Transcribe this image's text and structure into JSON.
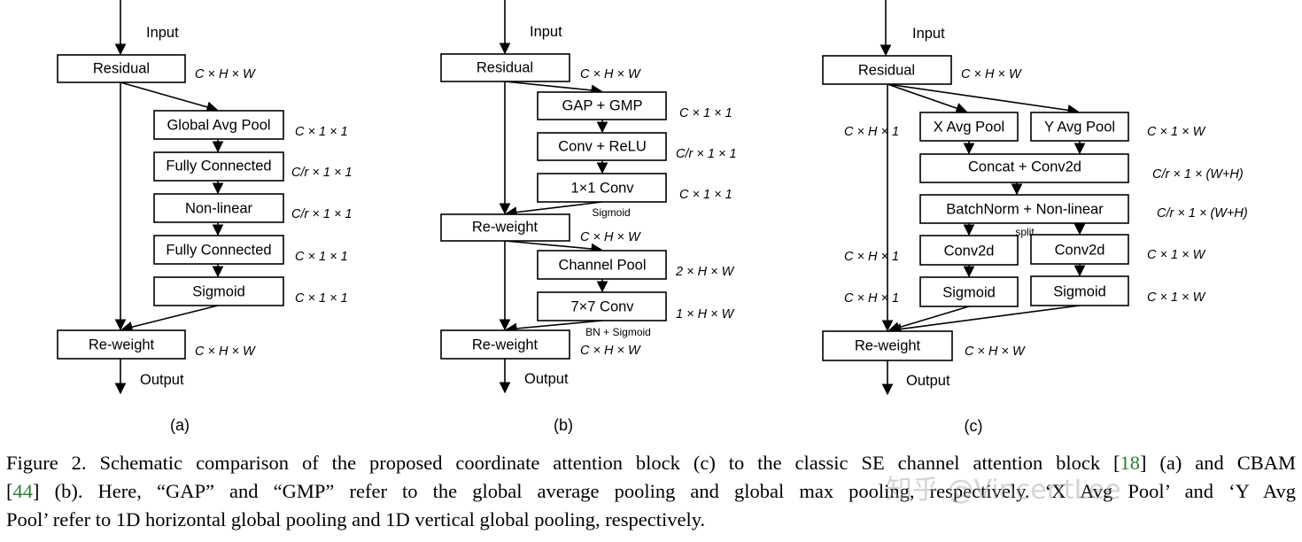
{
  "panels": {
    "a": {
      "label": "(a)",
      "input": "Input",
      "output": "Output",
      "boxes": [
        "Residual",
        "Global Avg Pool",
        "Fully Connected",
        "Non-linear",
        "Fully Connected",
        "Sigmoid",
        "Re-weight"
      ],
      "dims": [
        "C × H × W",
        "C × 1 × 1",
        "C/r × 1 × 1",
        "C/r × 1 × 1",
        "C × 1 × 1",
        "C × 1 × 1",
        "C × H × W"
      ]
    },
    "b": {
      "label": "(b)",
      "input": "Input",
      "output": "Output",
      "boxes": [
        "Residual",
        "GAP + GMP",
        "Conv + ReLU",
        "1×1 Conv",
        "Re-weight",
        "Channel Pool",
        "7×7 Conv",
        "Re-weight"
      ],
      "dims": [
        "C × H × W",
        "C × 1 × 1",
        "C/r × 1 × 1",
        "C × 1 × 1",
        "C × H × W",
        "2 × H × W",
        "1 × H × W",
        "C × H × W"
      ],
      "notes": [
        "Sigmoid",
        "BN + Sigmoid"
      ]
    },
    "c": {
      "label": "(c)",
      "input": "Input",
      "output": "Output",
      "boxes": [
        "Residual",
        "X Avg Pool",
        "Y Avg Pool",
        "Concat + Conv2d",
        "BatchNorm + Non-linear",
        "Conv2d",
        "Conv2d",
        "Sigmoid",
        "Sigmoid",
        "Re-weight"
      ],
      "dims": [
        "C × H × W",
        "C × H × 1",
        "C × 1 × W",
        "C/r × 1 × (W+H)",
        "C/r × 1 × (W+H)",
        "C × H × 1",
        "C × 1 × W",
        "C × H × 1",
        "C × 1 × W",
        "C × H × W"
      ],
      "notes": [
        "split"
      ]
    }
  },
  "caption": {
    "line1_pre": "Figure 2. Schematic comparison of the proposed coordinate attention block (c) to the classic SE channel attention block [",
    "cite1": "18",
    "line1_post": "] (a) and CBAM",
    "line2_pre": "[",
    "cite2": "44",
    "line2_post": "] (b).  Here, “GAP” and “GMP” refer to the global average pooling and global max pooling, respectively. ‘X Avg Pool’ and ‘Y Avg",
    "line3": "Pool’ refer to 1D horizontal global pooling and 1D vertical global pooling, respectively.",
    "citation_color": "#2e7d32"
  },
  "watermark": "知乎 @VincentLee"
}
